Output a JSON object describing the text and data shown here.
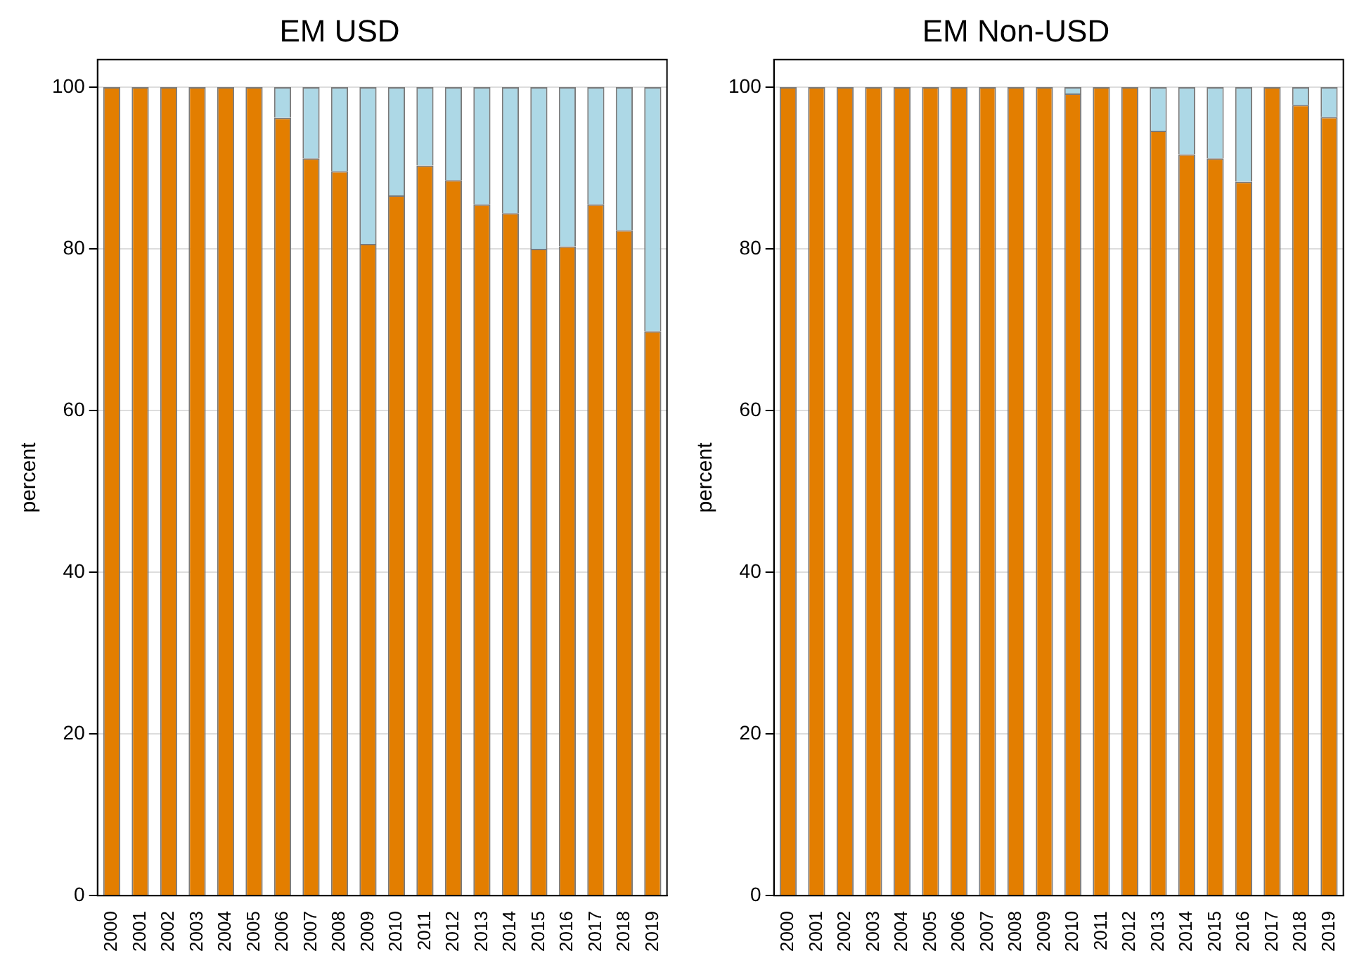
{
  "chart_data": [
    {
      "type": "bar",
      "title": "EM USD",
      "ylabel": "percent",
      "stacked": true,
      "grid": "y",
      "ylim": [
        0,
        103.4
      ],
      "yticks": [
        0,
        20,
        40,
        60,
        80,
        100
      ],
      "categories": [
        "2000",
        "2001",
        "2002",
        "2003",
        "2004",
        "2005",
        "2006",
        "2007",
        "2008",
        "2009",
        "2010",
        "2011",
        "2012",
        "2013",
        "2014",
        "2015",
        "2016",
        "2017",
        "2018",
        "2019"
      ],
      "series": [
        {
          "color": "#e37e00",
          "values": [
            100,
            100,
            100,
            100,
            100,
            100,
            96.2,
            91.2,
            89.6,
            80.6,
            86.6,
            90.3,
            88.5,
            85.5,
            84.4,
            80,
            80.3,
            85.5,
            82.3,
            69.8
          ]
        },
        {
          "color": "#add8e6",
          "values": [
            0,
            0,
            0,
            0,
            0,
            0,
            3.8,
            8.8,
            10.4,
            19.4,
            13.4,
            9.7,
            11.5,
            14.5,
            15.6,
            20,
            19.7,
            14.5,
            17.7,
            30.2
          ]
        }
      ]
    },
    {
      "type": "bar",
      "title": "EM Non-USD",
      "ylabel": "percent",
      "stacked": true,
      "grid": "y",
      "ylim": [
        0,
        103.4
      ],
      "yticks": [
        0,
        20,
        40,
        60,
        80,
        100
      ],
      "categories": [
        "2000",
        "2001",
        "2002",
        "2003",
        "2004",
        "2005",
        "2006",
        "2007",
        "2008",
        "2009",
        "2010",
        "2011",
        "2012",
        "2013",
        "2014",
        "2015",
        "2016",
        "2017",
        "2018",
        "2019"
      ],
      "series": [
        {
          "color": "#e37e00",
          "values": [
            100,
            100,
            100,
            100,
            100,
            100,
            100,
            100,
            100,
            100,
            99.2,
            100,
            100,
            94.6,
            91.7,
            91.2,
            88.3,
            100,
            97.8,
            96.3
          ]
        },
        {
          "color": "#add8e6",
          "values": [
            0,
            0,
            0,
            0,
            0,
            0,
            0,
            0,
            0,
            0,
            0.8,
            0,
            0,
            5.4,
            8.3,
            8.8,
            11.7,
            0,
            2.2,
            3.7
          ]
        }
      ]
    }
  ]
}
